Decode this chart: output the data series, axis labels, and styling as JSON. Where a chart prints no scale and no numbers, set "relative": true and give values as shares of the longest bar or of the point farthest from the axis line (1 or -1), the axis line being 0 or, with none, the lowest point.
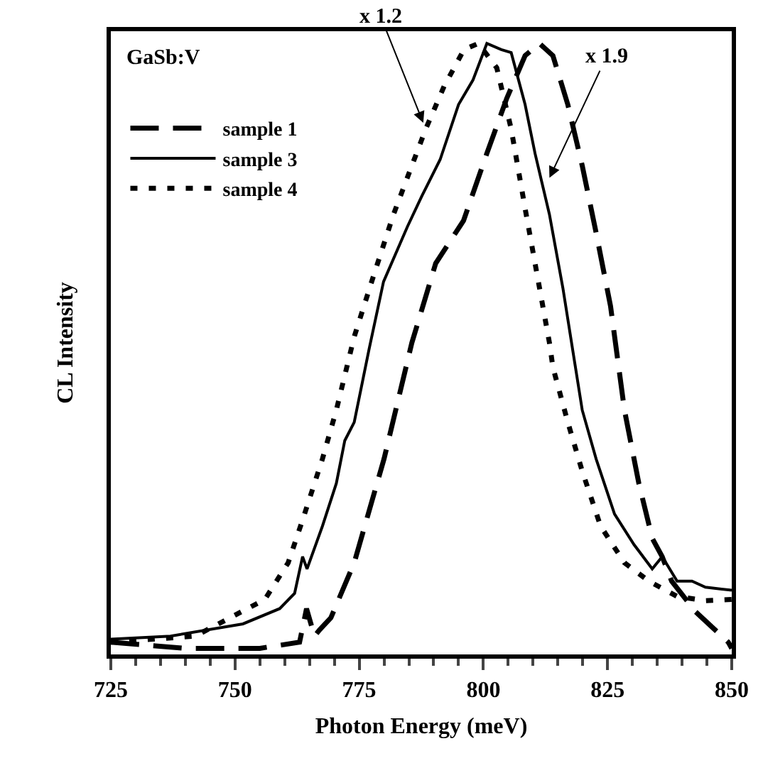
{
  "chart_data": {
    "type": "line",
    "xlabel": "Photon Energy (meV)",
    "ylabel": "CL Intensity",
    "relative": true,
    "xlim": [
      725,
      850
    ],
    "xticks": [
      725,
      750,
      775,
      800,
      825,
      850
    ],
    "grid": false,
    "legend": "top left",
    "marker": "none",
    "annotations": [
      "GaSb:V",
      {
        "text": "x 1.2",
        "x": 787.9,
        "y": 0.87
      },
      {
        "text": "x 1.9",
        "x": 813.3,
        "y": 0.78
      }
    ],
    "series": [
      {
        "name": "sample 1",
        "color": "#000000",
        "line_style": "dashed",
        "x": [
          725,
          740,
          755,
          763,
          764.4,
          766,
          767,
          769.3,
          774,
          780,
          785.6,
          790.4,
          796,
          800.7,
          804.7,
          808.4,
          811.3,
          814,
          817,
          819.9,
          822.7,
          825.6,
          828.4,
          831.3,
          834,
          836,
          837.9,
          842.7,
          849.3,
          850
        ],
        "values": [
          0.02,
          0.01,
          0.01,
          0.02,
          0.075,
          0.03,
          0.04,
          0.06,
          0.15,
          0.32,
          0.51,
          0.64,
          0.71,
          0.82,
          0.91,
          0.98,
          1.0,
          0.98,
          0.9,
          0.8,
          0.69,
          0.57,
          0.4,
          0.28,
          0.19,
          0.16,
          0.12,
          0.07,
          0.02,
          0.01
        ]
      },
      {
        "name": "sample 3",
        "color": "#000000",
        "line_style": "solid",
        "x": [
          725,
          737,
          751.6,
          759,
          762,
          763.6,
          764.5,
          767.6,
          770.4,
          772.1,
          774,
          777,
          779.9,
          784.7,
          787.6,
          791.3,
          795,
          797.9,
          800.7,
          803.6,
          805.6,
          808.4,
          810.4,
          813.3,
          816,
          819.9,
          822.7,
          826.4,
          830.3,
          834,
          836,
          839,
          842,
          844.7,
          850
        ],
        "values": [
          0.025,
          0.03,
          0.05,
          0.075,
          0.1,
          0.16,
          0.14,
          0.21,
          0.28,
          0.35,
          0.38,
          0.5,
          0.61,
          0.7,
          0.75,
          0.81,
          0.9,
          0.94,
          1.0,
          0.99,
          0.985,
          0.9,
          0.82,
          0.72,
          0.6,
          0.4,
          0.32,
          0.23,
          0.18,
          0.14,
          0.16,
          0.12,
          0.12,
          0.11,
          0.105
        ]
      },
      {
        "name": "sample 4",
        "color": "#000000",
        "line_style": "dotted",
        "x": [
          725,
          742,
          756,
          760.7,
          763.6,
          767.6,
          770.4,
          774,
          777.9,
          781.9,
          785.6,
          788.4,
          792.1,
          796.1,
          799,
          802.7,
          805.6,
          808.4,
          811.3,
          813.3,
          814,
          817,
          819.9,
          823.6,
          828.4,
          833.3,
          839,
          844.7,
          850
        ],
        "values": [
          0.02,
          0.03,
          0.09,
          0.15,
          0.22,
          0.32,
          0.4,
          0.52,
          0.62,
          0.72,
          0.8,
          0.86,
          0.93,
          0.99,
          1.0,
          0.96,
          0.86,
          0.73,
          0.6,
          0.51,
          0.47,
          0.38,
          0.3,
          0.21,
          0.15,
          0.12,
          0.095,
          0.088,
          0.09
        ]
      }
    ]
  }
}
